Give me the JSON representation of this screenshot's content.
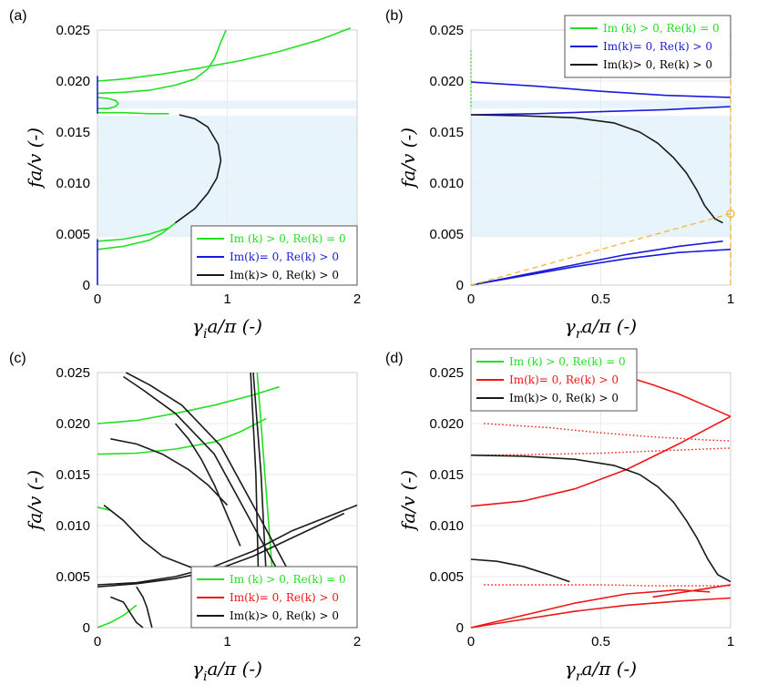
{
  "figure": {
    "description_panels": [
      "(a)",
      "(b)",
      "(c)",
      "(d)"
    ]
  },
  "colors": {
    "green": "#22e022",
    "blue": "#1a1adc",
    "red": "#ee1515",
    "black": "#1a1a1a",
    "band": "#e8f4fc",
    "grid": "#ebebeb",
    "orange": "#f5b942"
  },
  "chart_data": [
    {
      "panel": "(a)",
      "type": "line",
      "xlabel": "γᵢa/π (-)",
      "ylabel": "fa/v (-)",
      "xlim": [
        0,
        2
      ],
      "ylim": [
        0,
        0.025
      ],
      "xticks": [
        "0",
        "1",
        "2"
      ],
      "yticks": [
        "0",
        "0.005",
        "0.010",
        "0.015",
        "0.020",
        "0.025"
      ],
      "legend": {
        "position": "bottom-right",
        "entries": [
          {
            "label": "Im (k) > 0, Re(k) = 0",
            "color": "green"
          },
          {
            "label": "Im(k)= 0,   Re(k) > 0",
            "color": "blue"
          },
          {
            "label": "Im(k)> 0,   Re(k) > 0",
            "color": "black"
          }
        ]
      },
      "bands": [
        [
          0.0047,
          0.0166
        ],
        [
          0.0173,
          0.0181
        ]
      ],
      "series": [
        {
          "name": "green-upper",
          "color": "green",
          "x": [
            0,
            0.2,
            0.5,
            0.8,
            1.1,
            1.4,
            1.7,
            1.95
          ],
          "y": [
            0.02,
            0.0202,
            0.0207,
            0.0213,
            0.022,
            0.0229,
            0.024,
            0.0252
          ]
        },
        {
          "name": "green-mid",
          "color": "green",
          "x": [
            0,
            0.2,
            0.4,
            0.6,
            0.75,
            0.85,
            0.9,
            0.95,
            0.99
          ],
          "y": [
            0.0188,
            0.0189,
            0.0191,
            0.0196,
            0.0202,
            0.0212,
            0.0222,
            0.0238,
            0.025
          ]
        },
        {
          "name": "green-loop",
          "color": "green",
          "x": [
            0,
            0.08,
            0.14,
            0.16,
            0.14,
            0.08,
            0
          ],
          "y": [
            0.0184,
            0.0183,
            0.0181,
            0.0178,
            0.0175,
            0.0173,
            0.0173
          ]
        },
        {
          "name": "green-0169",
          "color": "green",
          "x": [
            0,
            0.2,
            0.4,
            0.55
          ],
          "y": [
            0.0169,
            0.0169,
            0.0168,
            0.0168
          ]
        },
        {
          "name": "green-low1",
          "color": "green",
          "x": [
            0,
            0.2,
            0.4,
            0.55,
            0.6
          ],
          "y": [
            0.0043,
            0.0045,
            0.005,
            0.0056,
            0.0061
          ]
        },
        {
          "name": "green-low2",
          "color": "green",
          "x": [
            0,
            0.2,
            0.4,
            0.5,
            0.55,
            0.6
          ],
          "y": [
            0.0035,
            0.0038,
            0.0044,
            0.0051,
            0.0056,
            0.0061
          ]
        },
        {
          "name": "black-arc",
          "color": "black",
          "x": [
            0.6,
            0.75,
            0.85,
            0.92,
            0.95,
            0.93,
            0.85,
            0.75,
            0.63
          ],
          "y": [
            0.0061,
            0.0075,
            0.009,
            0.0105,
            0.0122,
            0.0138,
            0.0155,
            0.0163,
            0.0167
          ]
        },
        {
          "name": "blue-axis-upper",
          "color": "blue",
          "x": [
            0,
            0
          ],
          "y": [
            0.0168,
            0.0205
          ]
        },
        {
          "name": "blue-axis-lower",
          "color": "blue",
          "x": [
            0,
            0
          ],
          "y": [
            0,
            0.0045
          ]
        }
      ]
    },
    {
      "panel": "(b)",
      "type": "line",
      "xlabel": "γᵣa/π (-)",
      "ylabel": "fa/v (-)",
      "xlim": [
        0,
        1
      ],
      "ylim": [
        0,
        0.025
      ],
      "xticks": [
        "0",
        "0.5",
        "1"
      ],
      "yticks": [
        "0",
        "0.005",
        "0.010",
        "0.015",
        "0.020",
        "0.025"
      ],
      "legend": {
        "position": "top-right",
        "entries": [
          {
            "label": "Im (k) > 0, Re(k) = 0",
            "color": "green"
          },
          {
            "label": "Im(k)= 0,   Re(k) > 0",
            "color": "blue"
          },
          {
            "label": "Im(k)> 0,   Re(k) > 0",
            "color": "black"
          }
        ]
      },
      "bands": [
        [
          0.0047,
          0.0166
        ],
        [
          0.0173,
          0.0181
        ]
      ],
      "series": [
        {
          "name": "blue-0199",
          "color": "blue",
          "x": [
            0,
            0.25,
            0.5,
            0.75,
            1.0
          ],
          "y": [
            0.0199,
            0.0195,
            0.019,
            0.0186,
            0.0184
          ]
        },
        {
          "name": "blue-0167",
          "color": "blue",
          "x": [
            0,
            0.25,
            0.5,
            0.75,
            1.0
          ],
          "y": [
            0.0167,
            0.0168,
            0.017,
            0.0172,
            0.0175
          ]
        },
        {
          "name": "black-decay",
          "color": "black",
          "x": [
            0,
            0.2,
            0.4,
            0.55,
            0.65,
            0.72,
            0.78,
            0.83,
            0.87,
            0.9,
            0.94,
            0.97
          ],
          "y": [
            0.0167,
            0.0166,
            0.0164,
            0.0159,
            0.015,
            0.0139,
            0.0125,
            0.011,
            0.0093,
            0.0078,
            0.0065,
            0.0061
          ]
        },
        {
          "name": "blue-low1",
          "color": "blue",
          "x": [
            0,
            0.2,
            0.4,
            0.6,
            0.8,
            0.97
          ],
          "y": [
            0.0,
            0.001,
            0.002,
            0.003,
            0.0038,
            0.0043
          ]
        },
        {
          "name": "blue-low2",
          "color": "blue",
          "x": [
            0,
            0.2,
            0.4,
            0.6,
            0.8,
            1.0
          ],
          "y": [
            0.0,
            0.0009,
            0.0018,
            0.0026,
            0.0032,
            0.0035
          ]
        },
        {
          "name": "green-axis-dots",
          "color": "green",
          "x": [
            0,
            0
          ],
          "y": [
            0.0175,
            0.0232
          ]
        },
        {
          "name": "orange-guide",
          "color": "orange",
          "x": [
            0,
            1.0
          ],
          "y": [
            0.0,
            0.007
          ]
        },
        {
          "name": "orange-vertical",
          "color": "orange",
          "x": [
            1.0,
            1.0
          ],
          "y": [
            0.0,
            0.025
          ]
        }
      ]
    },
    {
      "panel": "(c)",
      "type": "line",
      "xlabel": "γᵢa/π (-)",
      "ylabel": "fa/v (-)",
      "xlim": [
        0,
        2
      ],
      "ylim": [
        0,
        0.025
      ],
      "xticks": [
        "0",
        "1",
        "2"
      ],
      "yticks": [
        "0",
        "0.005",
        "0.010",
        "0.015",
        "0.020",
        "0.025"
      ],
      "legend": {
        "position": "bottom-right",
        "entries": [
          {
            "label": "Im (k) > 0, Re(k) = 0",
            "color": "green"
          },
          {
            "label": "Im(k)= 0,   Re(k) > 0",
            "color": "red"
          },
          {
            "label": "Im(k)> 0,   Re(k) > 0",
            "color": "black"
          }
        ]
      },
      "series": [
        {
          "name": "green-upper",
          "color": "green",
          "x": [
            0,
            0.3,
            0.6,
            0.9,
            1.2,
            1.4
          ],
          "y": [
            0.02,
            0.0203,
            0.021,
            0.0218,
            0.0228,
            0.0236
          ]
        },
        {
          "name": "green-mid",
          "color": "green",
          "x": [
            0,
            0.3,
            0.6,
            0.9,
            1.1,
            1.3
          ],
          "y": [
            0.017,
            0.0171,
            0.0175,
            0.0182,
            0.0192,
            0.0205
          ]
        },
        {
          "name": "green-vert",
          "color": "green",
          "x": [
            1.23,
            1.26,
            1.29,
            1.32,
            1.35,
            1.37
          ],
          "y": [
            0.025,
            0.02,
            0.015,
            0.01,
            0.005,
            0.0005
          ]
        },
        {
          "name": "green-low",
          "color": "green",
          "x": [
            0,
            0.1,
            0.2,
            0.3
          ],
          "y": [
            0.0,
            0.0005,
            0.0012,
            0.0022
          ]
        },
        {
          "name": "green-left",
          "color": "green",
          "x": [
            0,
            0.1,
            0.2
          ],
          "y": [
            0.0118,
            0.0115,
            0.0105
          ]
        },
        {
          "name": "black-1",
          "color": "black",
          "x": [
            0.2,
            0.35,
            0.6,
            0.9,
            1.2,
            1.5
          ],
          "y": [
            0.0246,
            0.0233,
            0.021,
            0.017,
            0.01,
            0.003
          ]
        },
        {
          "name": "black-2",
          "color": "black",
          "x": [
            0.22,
            0.4,
            0.65,
            0.95,
            1.25,
            1.55
          ],
          "y": [
            0.025,
            0.0238,
            0.0218,
            0.0178,
            0.0108,
            0.0037
          ]
        },
        {
          "name": "black-3",
          "color": "black",
          "x": [
            0.1,
            0.3,
            0.5,
            0.7,
            0.85,
            1.0
          ],
          "y": [
            0.0185,
            0.018,
            0.017,
            0.0155,
            0.014,
            0.012
          ]
        },
        {
          "name": "black-4",
          "color": "black",
          "x": [
            0,
            0.3,
            0.6,
            0.9,
            1.2,
            1.5,
            2.0
          ],
          "y": [
            0.0042,
            0.0044,
            0.005,
            0.006,
            0.0075,
            0.0095,
            0.012
          ]
        },
        {
          "name": "black-5",
          "color": "black",
          "x": [
            0,
            0.3,
            0.6,
            0.9,
            1.2,
            1.5,
            1.9
          ],
          "y": [
            0.004,
            0.0043,
            0.0048,
            0.0056,
            0.007,
            0.0088,
            0.0112
          ]
        },
        {
          "name": "black-6",
          "color": "black",
          "x": [
            1.18,
            1.2,
            1.22,
            1.23,
            1.24,
            1.25
          ],
          "y": [
            0.025,
            0.02,
            0.015,
            0.01,
            0.005,
            0.0005
          ]
        },
        {
          "name": "black-7",
          "color": "black",
          "x": [
            1.2,
            1.23,
            1.26,
            1.28,
            1.3,
            1.32
          ],
          "y": [
            0.025,
            0.02,
            0.015,
            0.01,
            0.005,
            0.0005
          ]
        },
        {
          "name": "black-8",
          "color": "black",
          "x": [
            0.05,
            0.2,
            0.35,
            0.5,
            0.7,
            0.95
          ],
          "y": [
            0.012,
            0.0105,
            0.0085,
            0.007,
            0.006,
            0.005
          ]
        },
        {
          "name": "black-9",
          "color": "black",
          "x": [
            0.3,
            0.35,
            0.38,
            0.4,
            0.42
          ],
          "y": [
            0.004,
            0.003,
            0.002,
            0.001,
            0.0
          ]
        },
        {
          "name": "black-10",
          "color": "black",
          "x": [
            0.6,
            0.7,
            0.8,
            0.9,
            1.0,
            1.1
          ],
          "y": [
            0.02,
            0.0185,
            0.0165,
            0.014,
            0.011,
            0.008
          ]
        },
        {
          "name": "black-11",
          "color": "black",
          "x": [
            0.1,
            0.2,
            0.25,
            0.3,
            0.35
          ],
          "y": [
            0.003,
            0.0025,
            0.0015,
            0.0005,
            0.0
          ]
        }
      ]
    },
    {
      "panel": "(d)",
      "type": "line",
      "xlabel": "γᵣa/π (-)",
      "ylabel": "fa/v (-)",
      "xlim": [
        0,
        1
      ],
      "ylim": [
        0,
        0.025
      ],
      "xticks": [
        "0",
        "0.5",
        "1"
      ],
      "yticks": [
        "0",
        "0.005",
        "0.010",
        "0.015",
        "0.020",
        "0.025"
      ],
      "legend": {
        "position": "top-left",
        "entries": [
          {
            "label": "Im (k) > 0, Re(k) = 0",
            "color": "green"
          },
          {
            "label": "Im(k)= 0,   Re(k) > 0",
            "color": "red"
          },
          {
            "label": "Im(k)> 0,   Re(k) > 0",
            "color": "black"
          }
        ]
      },
      "series": [
        {
          "name": "red-rise",
          "color": "red",
          "x": [
            0,
            0.2,
            0.4,
            0.6,
            0.8,
            1.0
          ],
          "y": [
            0.0119,
            0.0124,
            0.0136,
            0.0155,
            0.018,
            0.0207
          ]
        },
        {
          "name": "red-fall",
          "color": "red",
          "x": [
            0.6,
            0.7,
            0.8,
            0.9,
            1.0
          ],
          "y": [
            0.0246,
            0.0238,
            0.0229,
            0.0218,
            0.0207
          ]
        },
        {
          "name": "red-dots-0200",
          "color": "red",
          "x": [
            0.05,
            0.3,
            0.5,
            0.7,
            0.9,
            1.0
          ],
          "y": [
            0.02,
            0.0196,
            0.0191,
            0.0187,
            0.0184,
            0.0183
          ]
        },
        {
          "name": "red-dots-0170",
          "color": "red",
          "x": [
            0.05,
            0.3,
            0.5,
            0.7,
            0.9,
            1.0
          ],
          "y": [
            0.0169,
            0.017,
            0.0171,
            0.0173,
            0.0175,
            0.0176
          ]
        },
        {
          "name": "black-decay",
          "color": "black",
          "x": [
            0,
            0.2,
            0.4,
            0.55,
            0.65,
            0.72,
            0.78,
            0.83,
            0.87,
            0.91,
            0.95,
            1.0
          ],
          "y": [
            0.0169,
            0.0168,
            0.0165,
            0.0159,
            0.015,
            0.0138,
            0.0123,
            0.0105,
            0.0088,
            0.0068,
            0.0052,
            0.0045
          ]
        },
        {
          "name": "black-short",
          "color": "black",
          "x": [
            0,
            0.1,
            0.2,
            0.3,
            0.38
          ],
          "y": [
            0.0067,
            0.0065,
            0.006,
            0.0052,
            0.0045
          ]
        },
        {
          "name": "red-dots-0042",
          "color": "red",
          "x": [
            0.05,
            0.3,
            0.5,
            0.7,
            0.9,
            1.0
          ],
          "y": [
            0.0042,
            0.0042,
            0.0042,
            0.0041,
            0.0041,
            0.0041
          ]
        },
        {
          "name": "red-low1",
          "color": "red",
          "x": [
            0,
            0.2,
            0.4,
            0.6,
            0.8,
            0.92
          ],
          "y": [
            0.0,
            0.0012,
            0.0024,
            0.0033,
            0.0037,
            0.0035
          ]
        },
        {
          "name": "red-low2",
          "color": "red",
          "x": [
            0,
            0.2,
            0.4,
            0.6,
            0.8,
            1.0
          ],
          "y": [
            0.0,
            0.0008,
            0.0016,
            0.0022,
            0.0026,
            0.0029
          ]
        },
        {
          "name": "red-low3",
          "color": "red",
          "x": [
            0.7,
            0.8,
            0.9,
            1.0
          ],
          "y": [
            0.003,
            0.0034,
            0.0038,
            0.0042
          ]
        }
      ]
    }
  ]
}
